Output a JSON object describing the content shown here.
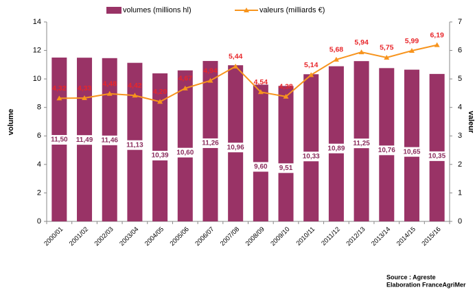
{
  "chart_data": {
    "type": "bar_line",
    "categories": [
      "2000/01",
      "2001/02",
      "2002/03",
      "2003/04",
      "2004/05",
      "2005/06",
      "2006/07",
      "2007/08",
      "2008/09",
      "2009/10",
      "2010/11",
      "2011/12",
      "2012/13",
      "2013/14",
      "2014/15",
      "2015/16"
    ],
    "series": [
      {
        "name": "volumes (millions hl)",
        "type": "bar",
        "color": "#993366",
        "values": [
          11.5,
          11.49,
          11.46,
          11.13,
          10.39,
          10.6,
          11.26,
          10.96,
          9.6,
          9.51,
          10.33,
          10.89,
          11.25,
          10.76,
          10.65,
          10.35
        ],
        "value_labels": [
          "11,50",
          "11,49",
          "11,46",
          "11,13",
          "10,39",
          "10,60",
          "11,26",
          "10,96",
          "9,60",
          "9,51",
          "10,33",
          "10,89",
          "11,25",
          "10,76",
          "10,65",
          "10,35"
        ]
      },
      {
        "name": "valeurs (milliards €)",
        "type": "line",
        "axis": "y2",
        "color": "#f7941d",
        "values": [
          4.32,
          4.33,
          4.48,
          4.42,
          4.2,
          4.67,
          4.94,
          5.44,
          4.54,
          4.38,
          5.14,
          5.68,
          5.94,
          5.75,
          5.99,
          6.19
        ],
        "value_labels": [
          "4,32",
          "4,33",
          "4,48",
          "4,42",
          "4,20",
          "4,67",
          "4,94",
          "5,44",
          "4,54",
          "4,38",
          "5,14",
          "5,68",
          "5,94",
          "5,75",
          "5,99",
          "6,19"
        ]
      }
    ],
    "y_label": "volume",
    "y2_label": "valeur",
    "ylim": [
      0,
      14
    ],
    "yticks": [
      0,
      2,
      4,
      6,
      8,
      10,
      12,
      14
    ],
    "y2lim": [
      0,
      7
    ],
    "y2ticks": [
      0,
      1,
      2,
      3,
      4,
      5,
      6,
      7
    ],
    "source": [
      "Source : Agreste",
      "Elaboration FranceAgriMer"
    ]
  }
}
